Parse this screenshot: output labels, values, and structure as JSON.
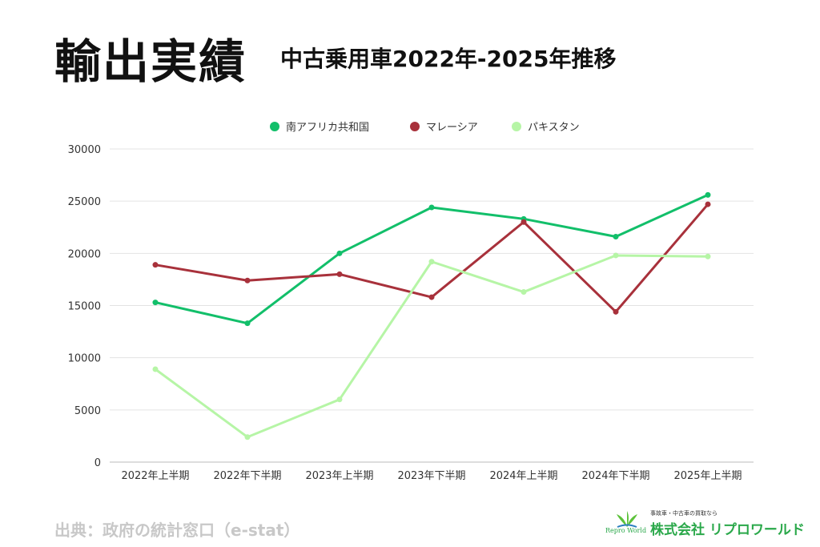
{
  "header": {
    "title": "輸出実績",
    "subtitle": "中古乗用車2022年-2025年推移"
  },
  "footer": {
    "source": "出典：政府の統計窓口（e-stat）",
    "logo_tagline": "事故車・中古車の買取なら",
    "logo_name": "株式会社 リプロワールド",
    "logo_brand": "Repro World"
  },
  "chart_data": {
    "type": "line",
    "title": "",
    "xlabel": "",
    "ylabel": "",
    "categories": [
      "2022年上半期",
      "2022年下半期",
      "2023年上半期",
      "2023年下半期",
      "2024年上半期",
      "2024年下半期",
      "2025年上半期"
    ],
    "ylim": [
      0,
      30000
    ],
    "yticks": [
      0,
      5000,
      10000,
      15000,
      20000,
      25000,
      30000
    ],
    "grid": true,
    "legend": "top",
    "series": [
      {
        "name": "南アフリカ共和国",
        "color": "#12bf6a",
        "values": [
          15300,
          13300,
          20000,
          24400,
          23300,
          21600,
          25600
        ]
      },
      {
        "name": "マレーシア",
        "color": "#a8313b",
        "values": [
          18900,
          17400,
          18000,
          15800,
          23000,
          14400,
          24700
        ]
      },
      {
        "name": "パキスタン",
        "color": "#b6f5a6",
        "values": [
          8900,
          2400,
          6000,
          19200,
          16300,
          19800,
          19700
        ]
      }
    ]
  }
}
